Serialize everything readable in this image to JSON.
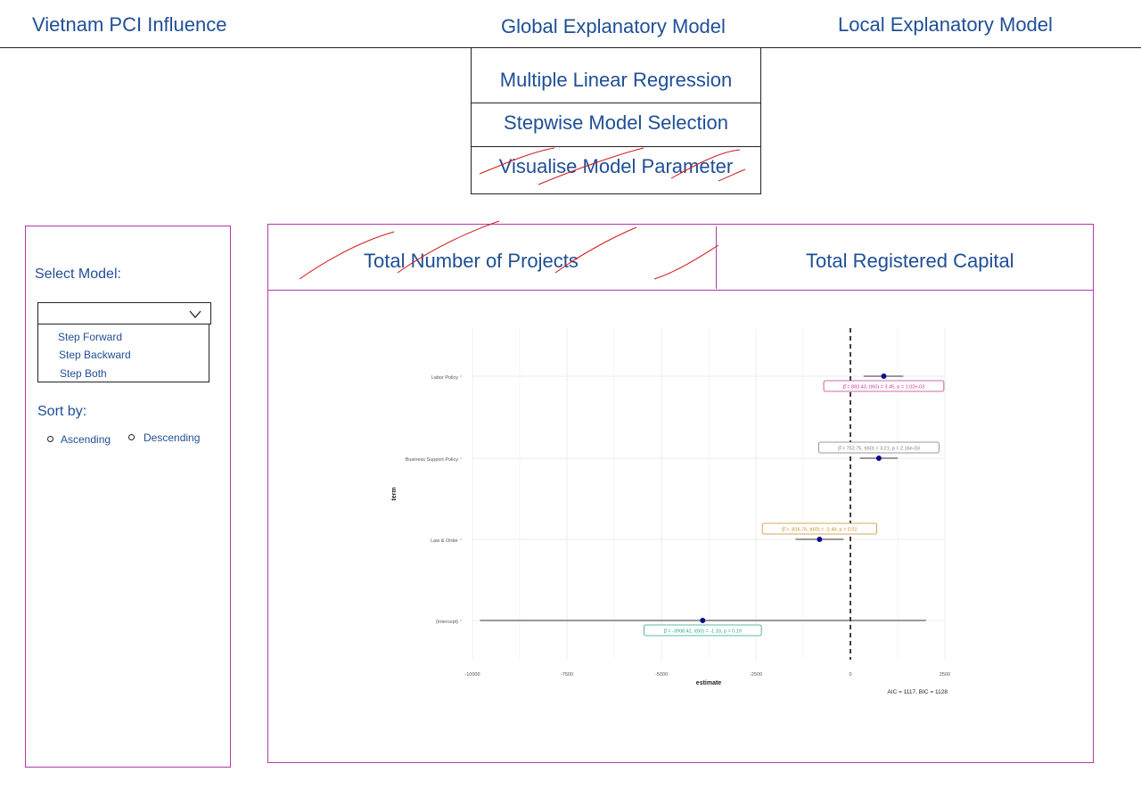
{
  "header": {
    "app_title": "Vietnam PCI Influence",
    "nav_global": "Global Explanatory Model",
    "nav_local": "Local Explanatory Model"
  },
  "global_menu": {
    "items": [
      "Multiple Linear Regression",
      "Stepwise Model Selection",
      "Visualise Model Parameter"
    ]
  },
  "sidebar": {
    "select_label": "Select Model:",
    "select_value": "",
    "options": [
      "Step Forward",
      "Step Backward",
      "Step Both"
    ],
    "sort_label": "Sort by:",
    "sort_options": [
      "Ascending",
      "Descending"
    ]
  },
  "tabs": [
    "Total Number of Projects",
    "Total Registered Capital"
  ],
  "colors": {
    "accent_purple": "#b03aa6",
    "text_blue": "#1f4f96",
    "annotation_red": "#d01818",
    "point_navy": "#0a0a8c"
  },
  "chart_data": {
    "type": "scatter",
    "subtype": "coefficient-plot",
    "xlabel": "estimate",
    "ylabel": "term",
    "xlim": [
      -10000,
      2500
    ],
    "xticks": [
      -10000,
      -7500,
      -5000,
      -2500,
      0,
      2500
    ],
    "xtick_labels": [
      "-10000",
      "-7500",
      "-5000",
      "-2500",
      "0",
      "2500"
    ],
    "reference_line": 0,
    "grid": true,
    "terms": [
      "Labor Policy",
      "Business Support Policy",
      "Law & Order",
      "(Intercept)"
    ],
    "estimates": [
      883.43,
      752.75,
      -816.76,
      -3908.42
    ],
    "ci_low": [
      350,
      250,
      -1450,
      -9800
    ],
    "ci_high": [
      1400,
      1250,
      -180,
      2000
    ],
    "labels": [
      "β̂ = 883.43, t(60) = 3.45, p = 1.02e-03",
      "β̂ = 752.75, t(60) = 3.21, p = 2.16e-03",
      "β̂ = -816.76, t(60) = -2.49, p = 0.02",
      "β̂ = -3908.42, t(60) = -1.33, p = 0.19"
    ],
    "label_colors": [
      "#c4378f",
      "#7a7a7a",
      "#c98a2a",
      "#2aa58a"
    ],
    "caption": "AIC = 1117, BIC = 1128"
  }
}
